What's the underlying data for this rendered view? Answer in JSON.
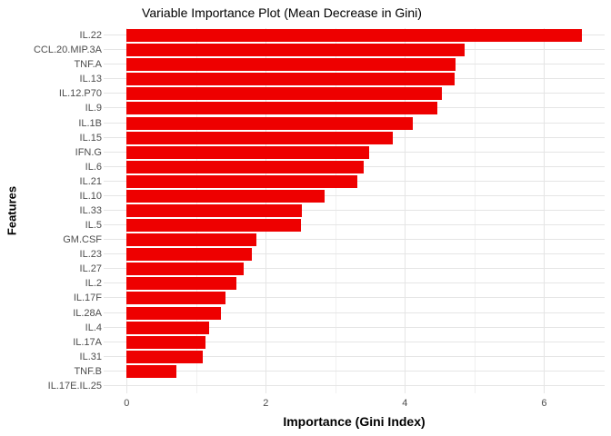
{
  "title": "Variable Importance Plot (Mean Decrease in Gini)",
  "chart_data": {
    "type": "bar",
    "orientation": "horizontal",
    "title": "Variable Importance Plot (Mean Decrease in Gini)",
    "xlabel": "Importance (Gini Index)",
    "ylabel": "Features",
    "categories": [
      "IL.22",
      "CCL.20.MIP.3A",
      "TNF.A",
      "IL.13",
      "IL.12.P70",
      "IL.9",
      "IL.1B",
      "IL.15",
      "IFN.G",
      "IL.6",
      "IL.21",
      "IL.10",
      "IL.33",
      "IL.5",
      "GM.CSF",
      "IL.23",
      "IL.27",
      "IL.2",
      "IL.17F",
      "IL.28A",
      "IL.4",
      "IL.17A",
      "IL.31",
      "TNF.B",
      "IL.17E.IL.25"
    ],
    "values": [
      6.54,
      4.86,
      4.73,
      4.71,
      4.53,
      4.46,
      4.11,
      3.83,
      3.49,
      3.41,
      3.32,
      2.84,
      2.52,
      2.5,
      1.87,
      1.8,
      1.68,
      1.58,
      1.42,
      1.35,
      1.19,
      1.13,
      1.1,
      0.72,
      0
    ],
    "x_ticks": [
      0,
      2,
      4,
      6
    ],
    "x_minor_ticks": [
      1,
      3,
      5
    ],
    "xlim": [
      -0.33,
      6.87
    ],
    "grid": true,
    "legend": "none",
    "bar_color": "#ee0000"
  },
  "colors": {
    "bar": "#ee0000",
    "grid_major": "#e5e5e5",
    "grid_minor": "#f0f0f0",
    "axis_text": "#4d4d4d",
    "background": "#ffffff"
  }
}
